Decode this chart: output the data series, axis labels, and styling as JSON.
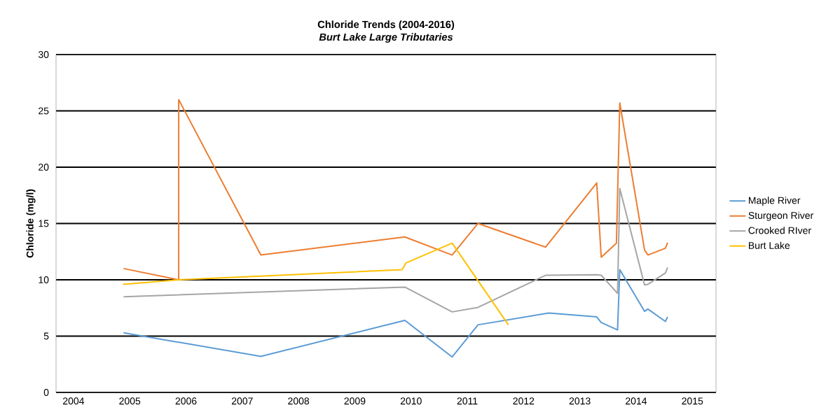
{
  "chart_data": {
    "type": "line",
    "title": "Chloride Trends (2004-2016)",
    "subtitle": "Burt Lake Large Tributaries",
    "ylabel": "Chloride (mg/l)",
    "xlim": [
      2003.69,
      2015.42
    ],
    "xticks": [
      2004,
      2005,
      2006,
      2007,
      2008,
      2009,
      2010,
      2011,
      2012,
      2013,
      2014,
      2015
    ],
    "ylim": [
      0,
      30
    ],
    "yticks": [
      0,
      5,
      10,
      15,
      20,
      25,
      30
    ],
    "grid": "y",
    "legend": "right",
    "marker": "none",
    "line_style": "solid",
    "series": [
      {
        "name": "Maple River",
        "color": "#5b9bd5",
        "x": [
          2004.89,
          2007.33,
          2009.89,
          2010.73,
          2011.19,
          2012.45,
          2013.3,
          2013.38,
          2013.67,
          2013.71,
          2014.15,
          2014.21,
          2014.52,
          2014.56
        ],
        "values": [
          5.3,
          3.2,
          6.4,
          3.15,
          6.0,
          7.05,
          6.7,
          6.2,
          5.55,
          10.9,
          7.2,
          7.4,
          6.3,
          6.7
        ]
      },
      {
        "name": "Sturgeon River",
        "color": "#ed7d31",
        "x": [
          2004.89,
          2005.87,
          2005.87,
          2007.33,
          2009.89,
          2010.73,
          2011.19,
          2012.39,
          2013.3,
          2013.38,
          2013.65,
          2013.71,
          2014.15,
          2014.21,
          2014.52,
          2014.56
        ],
        "values": [
          11.0,
          10.0,
          26.0,
          12.2,
          13.8,
          12.2,
          15.0,
          12.9,
          18.6,
          12.0,
          13.25,
          25.7,
          12.65,
          12.2,
          12.8,
          13.3
        ]
      },
      {
        "name": "Crooked RIver",
        "color": "#a5a5a5",
        "x": [
          2004.89,
          2009.89,
          2010.73,
          2011.19,
          2012.39,
          2013.3,
          2013.38,
          2013.67,
          2013.71,
          2014.15,
          2014.21,
          2014.52,
          2014.56
        ],
        "values": [
          8.5,
          9.35,
          7.15,
          7.55,
          10.4,
          10.45,
          10.4,
          8.8,
          18.1,
          9.55,
          9.6,
          10.6,
          11.1
        ]
      },
      {
        "name": "Burt Lake",
        "color": "#ffc000",
        "x": [
          2004.88,
          2005.87,
          2009.84,
          2009.91,
          2010.73,
          2011.73
        ],
        "values": [
          9.6,
          10.0,
          10.9,
          11.5,
          13.25,
          6.0
        ]
      }
    ]
  }
}
